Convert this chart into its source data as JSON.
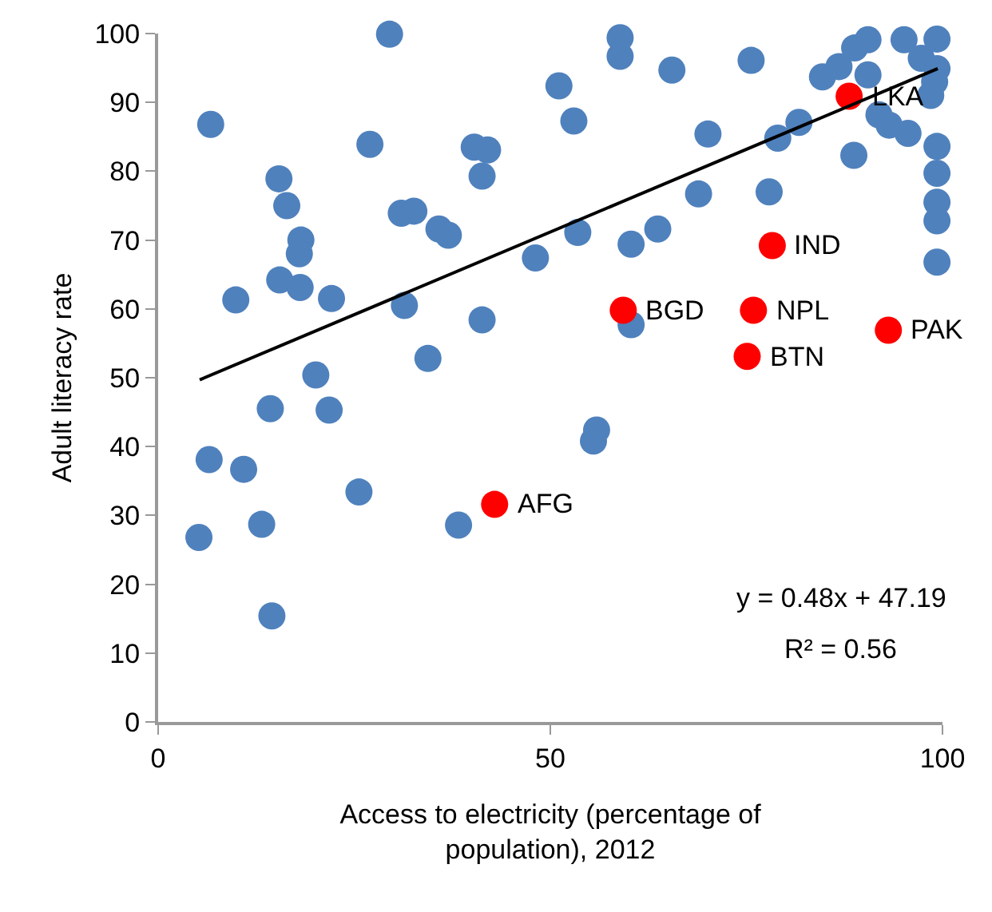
{
  "chart_data": {
    "type": "scatter",
    "xlabel": "Access to electricity (percentage of population), 2012",
    "ylabel": "Adult literacy rate",
    "xlim": [
      0,
      100
    ],
    "xticks": [
      0,
      50,
      100
    ],
    "ylim": [
      0,
      100
    ],
    "yticks": [
      0,
      10,
      20,
      30,
      40,
      50,
      60,
      70,
      80,
      90,
      100
    ],
    "grid": false,
    "marker": "circle",
    "series": [
      {
        "color": "#4f81bd",
        "x": [
          5.2,
          6.5,
          10.9,
          13.2,
          14.3,
          20.1,
          21.8,
          14.5,
          25.6,
          38.3,
          34.4,
          29.5,
          6.7,
          27.0,
          15.4,
          16.4,
          18.2,
          18.0,
          15.5,
          18.1,
          9.9,
          22.1,
          31.0,
          32.6,
          35.8,
          37.0,
          40.3,
          42.0,
          41.3,
          48.1,
          31.4,
          41.3,
          51.1,
          58.9,
          58.9,
          53.0,
          65.5,
          75.6,
          70.1,
          68.9,
          77.9,
          79.0,
          81.7,
          53.5,
          60.3,
          63.7,
          88.7,
          84.7,
          86.8,
          88.8,
          90.5,
          90.5,
          91.9,
          93.2,
          95.6,
          95.1,
          97.3,
          99.3,
          99.3,
          99.3,
          99.3,
          99.3,
          99.3,
          99.3,
          99,
          98.5,
          60.3,
          55.9,
          55.5
        ],
        "values": [
          26.8,
          38.1,
          36.7,
          28.7,
          45.5,
          50.4,
          45.3,
          15.4,
          33.4,
          28.6,
          52.8,
          99.9,
          86.8,
          83.9,
          78.9,
          75.0,
          70.0,
          68.0,
          64.2,
          63.1,
          61.3,
          61.5,
          73.9,
          74.2,
          71.6,
          70.7,
          83.5,
          83.1,
          79.3,
          67.4,
          60.5,
          58.4,
          92.4,
          99.4,
          96.7,
          87.3,
          94.7,
          96.1,
          85.4,
          76.7,
          77.0,
          84.8,
          87.1,
          71.1,
          69.4,
          71.6,
          82.3,
          93.7,
          95.2,
          97.9,
          99.1,
          94.0,
          88.2,
          86.7,
          85.5,
          99.1,
          96.4,
          99.2,
          94.9,
          83.6,
          79.7,
          75.5,
          72.8,
          66.8,
          93,
          91,
          57.7,
          42.4,
          40.8
        ]
      },
      {
        "color": "#ff0000",
        "x": [
          42.9,
          88.1,
          78.3,
          59.3,
          75.9,
          93.1,
          75.1
        ],
        "values": [
          31.6,
          90.9,
          69.2,
          59.8,
          59.8,
          56.9,
          53.1
        ]
      },
      {
        "type": "line",
        "color": "#000000",
        "x": [
          5.3,
          99.4
        ],
        "values": [
          49.7,
          94.9
        ],
        "marker": "none",
        "line_style": "solid"
      }
    ],
    "annotations": [
      {
        "text": "AFG",
        "x": 42.9,
        "y": 31.6
      },
      {
        "text": "LKA",
        "x": 88.1,
        "y": 90.9
      },
      {
        "text": "IND",
        "x": 78.3,
        "y": 69.2
      },
      {
        "text": "BGD",
        "x": 59.3,
        "y": 59.8
      },
      {
        "text": "NPL",
        "x": 75.9,
        "y": 59.8
      },
      {
        "text": "PAK",
        "x": 93.1,
        "y": 56.9
      },
      {
        "text": "BTN",
        "x": 75.1,
        "y": 53.1
      },
      "y = 0.48x + 47.19",
      "R² = 0.56"
    ]
  }
}
